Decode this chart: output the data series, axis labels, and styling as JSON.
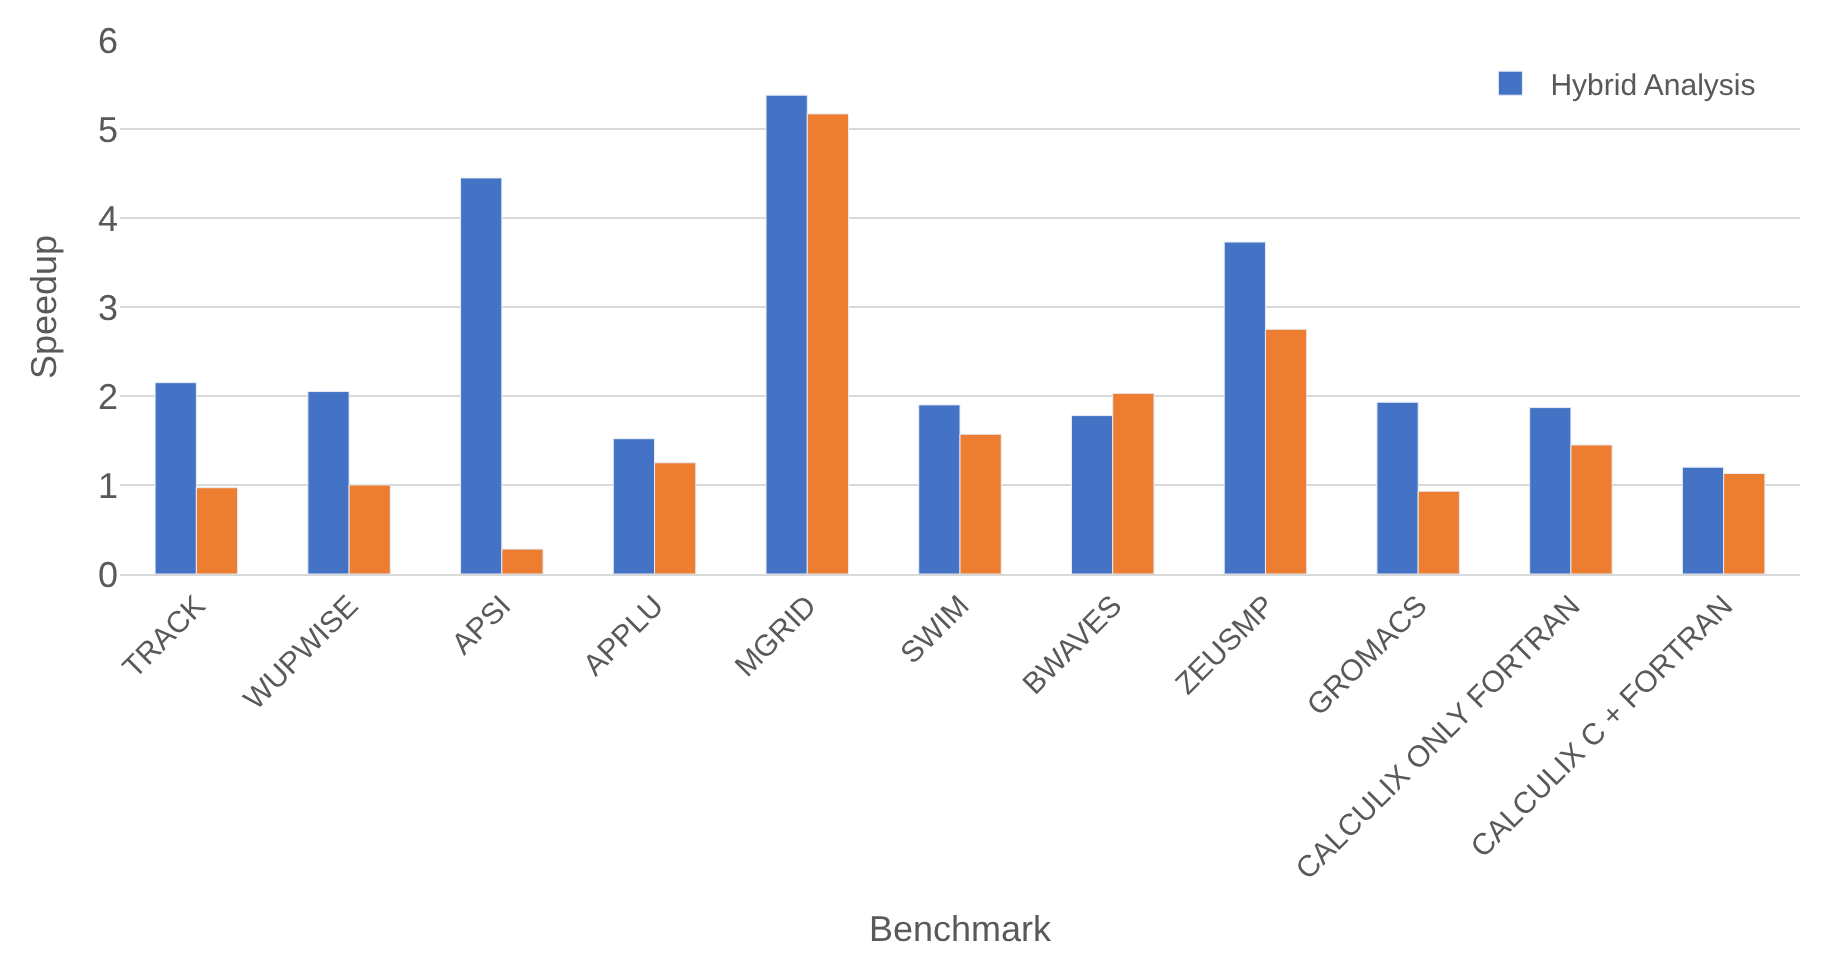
{
  "chart_data": {
    "type": "bar",
    "xlabel": "Benchmark",
    "ylabel": "Speedup",
    "categories": [
      "TRACK",
      "WUPWISE",
      "APSI",
      "APPLU",
      "MGRID",
      "SWIM",
      "BWAVES",
      "ZEUSMP",
      "GROMACS",
      "CALCULIX ONLY FORTRAN",
      "CALCULIX C + FORTRAN"
    ],
    "series": [
      {
        "name": "Hybrid Analysis",
        "color": "#4472c4",
        "values": [
          2.15,
          2.05,
          4.45,
          1.52,
          5.38,
          1.9,
          1.78,
          3.73,
          1.93,
          1.87,
          1.2
        ]
      },
      {
        "color": "#ed7d31",
        "values": [
          0.97,
          1.0,
          0.28,
          1.25,
          5.17,
          1.57,
          2.03,
          2.75,
          0.93,
          1.45,
          1.13
        ]
      }
    ],
    "ylim": [
      0,
      6
    ],
    "yticks": [
      0,
      1,
      2,
      3,
      4,
      5,
      6
    ],
    "grid": "y",
    "legend": "top right"
  }
}
